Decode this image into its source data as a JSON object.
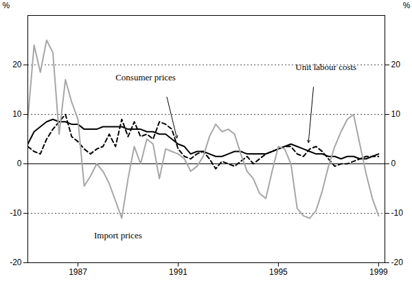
{
  "chart_data": {
    "type": "line",
    "y_label": "%",
    "x": [
      1985,
      1985.25,
      1985.5,
      1985.75,
      1986,
      1986.25,
      1986.5,
      1986.75,
      1987,
      1987.25,
      1987.5,
      1987.75,
      1988,
      1988.25,
      1988.5,
      1988.75,
      1989,
      1989.25,
      1989.5,
      1989.75,
      1990,
      1990.25,
      1990.5,
      1990.75,
      1991,
      1991.25,
      1991.5,
      1991.75,
      1992,
      1992.25,
      1992.5,
      1992.75,
      1993,
      1993.25,
      1993.5,
      1993.75,
      1994,
      1994.25,
      1994.5,
      1994.75,
      1995,
      1995.25,
      1995.5,
      1995.75,
      1996,
      1996.25,
      1996.5,
      1996.75,
      1997,
      1997.25,
      1997.5,
      1997.75,
      1998,
      1998.25,
      1998.5,
      1998.75,
      1999
    ],
    "series": [
      {
        "name": "Consumer prices",
        "color": "#000000",
        "line_style": "solid",
        "values": [
          4,
          6.5,
          7.5,
          8.5,
          9,
          8.5,
          8.5,
          8,
          8,
          7,
          7,
          7,
          7.5,
          7.5,
          7.5,
          7.5,
          7,
          7,
          7,
          6.5,
          6.5,
          6,
          6,
          5,
          4,
          3.5,
          2,
          2.5,
          2.5,
          2,
          1.5,
          1.5,
          2,
          2.5,
          2.5,
          2,
          2,
          2,
          2,
          2.5,
          3,
          3.5,
          4,
          3.5,
          3,
          2.5,
          2,
          2,
          1.5,
          1.5,
          1,
          1.5,
          1.5,
          1,
          1,
          1.5,
          2
        ]
      },
      {
        "name": "Unit labour costs",
        "color": "#000000",
        "line_style": "dashed",
        "values": [
          3.5,
          2.5,
          2,
          5,
          7,
          8.5,
          10,
          5.5,
          4.5,
          3,
          2,
          3,
          3.5,
          6,
          3.5,
          9,
          5.5,
          8.5,
          5.5,
          6,
          5,
          8.5,
          8,
          7,
          3,
          1.5,
          1,
          2,
          2.5,
          1,
          -1,
          0.5,
          0,
          -0.5,
          0.5,
          1.5,
          0,
          1,
          2,
          2.5,
          3,
          3.5,
          3.5,
          2,
          1.5,
          3,
          3.5,
          2.5,
          1,
          -0.5,
          0,
          0,
          0.5,
          1,
          1.5,
          1.5,
          1.5
        ]
      },
      {
        "name": "Import prices",
        "color": "#a6a6a6",
        "line_style": "solid",
        "values": [
          9,
          24,
          18.5,
          25,
          22.5,
          6,
          17,
          12.5,
          9,
          -4.5,
          -2.5,
          0,
          -1.5,
          -4,
          -7.5,
          -11,
          -3,
          3.5,
          0,
          5,
          4,
          -3,
          3,
          2.5,
          2,
          1,
          -1.5,
          -0.5,
          1.5,
          5.5,
          8,
          6.5,
          7,
          6,
          2,
          -1.5,
          -3,
          -6,
          -7,
          -1.5,
          3.5,
          3,
          0,
          -9,
          -10.5,
          -11,
          -9.5,
          -5.5,
          -0.5,
          3.5,
          6.5,
          9,
          10,
          4,
          -2,
          -7,
          -10.5
        ]
      }
    ],
    "xlim": [
      1985,
      1999.25
    ],
    "xticks": [
      1987,
      1991,
      1995,
      1999
    ],
    "ylim": [
      -20,
      30
    ],
    "yticks": [
      -20,
      -10,
      0,
      10,
      20
    ],
    "grid": true
  }
}
